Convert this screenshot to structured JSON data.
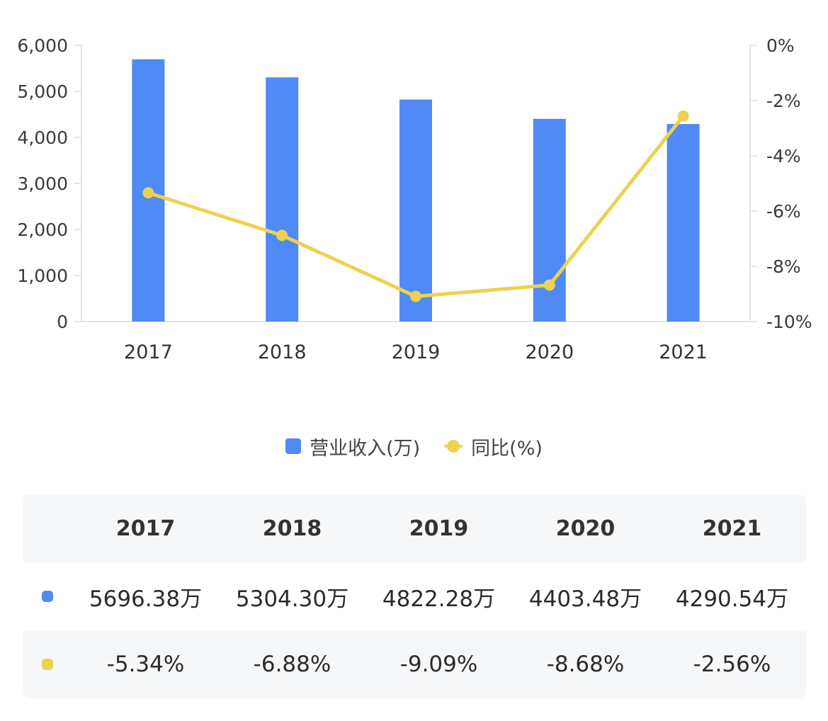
{
  "chart_data": {
    "type": "bar+line",
    "categories": [
      "2017",
      "2018",
      "2019",
      "2020",
      "2021"
    ],
    "series": [
      {
        "name": "营业收入(万)",
        "type": "bar",
        "axis": "left",
        "color": "#4f8af7",
        "values": [
          5696.38,
          5304.3,
          4822.28,
          4403.48,
          4290.54
        ]
      },
      {
        "name": "同比(%)",
        "type": "line",
        "axis": "right",
        "color": "#ecd250",
        "values": [
          -5.34,
          -6.88,
          -9.09,
          -8.68,
          -2.56
        ]
      }
    ],
    "y_left": {
      "min": 0,
      "max": 6000,
      "ticks": [
        "0",
        "1,000",
        "2,000",
        "3,000",
        "4,000",
        "5,000",
        "6,000"
      ]
    },
    "y_right": {
      "min": -10,
      "max": 0,
      "ticks": [
        "-10%",
        "-8%",
        "-6%",
        "-4%",
        "-2%",
        "0%"
      ]
    },
    "grid": false,
    "legend_position": "bottom"
  },
  "legend": {
    "bar_label": "营业收入(万)",
    "line_label": "同比(%)"
  },
  "table": {
    "headers": [
      "2017",
      "2018",
      "2019",
      "2020",
      "2021"
    ],
    "revenue_row": [
      "5696.38万",
      "5304.30万",
      "4822.28万",
      "4403.48万",
      "4290.54万"
    ],
    "yoy_row": [
      "-5.34%",
      "-6.88%",
      "-9.09%",
      "-8.68%",
      "-2.56%"
    ]
  },
  "colors": {
    "bar": "#4f8af7",
    "line": "#ecd250"
  }
}
